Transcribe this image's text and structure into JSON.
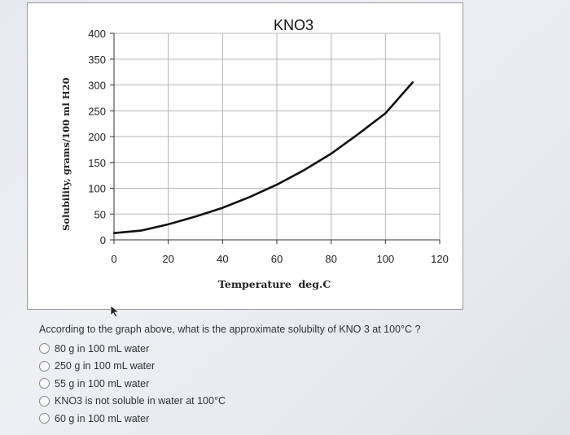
{
  "chart_data": {
    "type": "line",
    "title": "KNO3",
    "xlabel": "Temperature  deg.C",
    "ylabel": "Solubility, grams/100 ml H20",
    "xlim": [
      0,
      120
    ],
    "ylim": [
      0,
      400
    ],
    "x_ticks": [
      0,
      20,
      40,
      60,
      80,
      100,
      120
    ],
    "y_ticks": [
      0,
      50,
      100,
      150,
      200,
      250,
      300,
      350,
      400
    ],
    "grid": true,
    "series": [
      {
        "x": [
          0,
          10,
          20,
          30,
          40,
          50,
          60,
          70,
          80,
          90,
          100,
          105,
          110
        ],
        "y": [
          13,
          18,
          30,
          45,
          62,
          83,
          107,
          135,
          167,
          205,
          245,
          275,
          305
        ]
      }
    ]
  },
  "question": {
    "text": "According to the graph above, what is the approximate solubilty of KNO 3 at 100°C ?",
    "options": [
      "80 g in 100 mL water",
      "250 g in 100 mL water",
      "55 g in 100 mL water",
      "KNO3 is not soluble in water at 100°C",
      "60 g in 100 mL water"
    ]
  }
}
